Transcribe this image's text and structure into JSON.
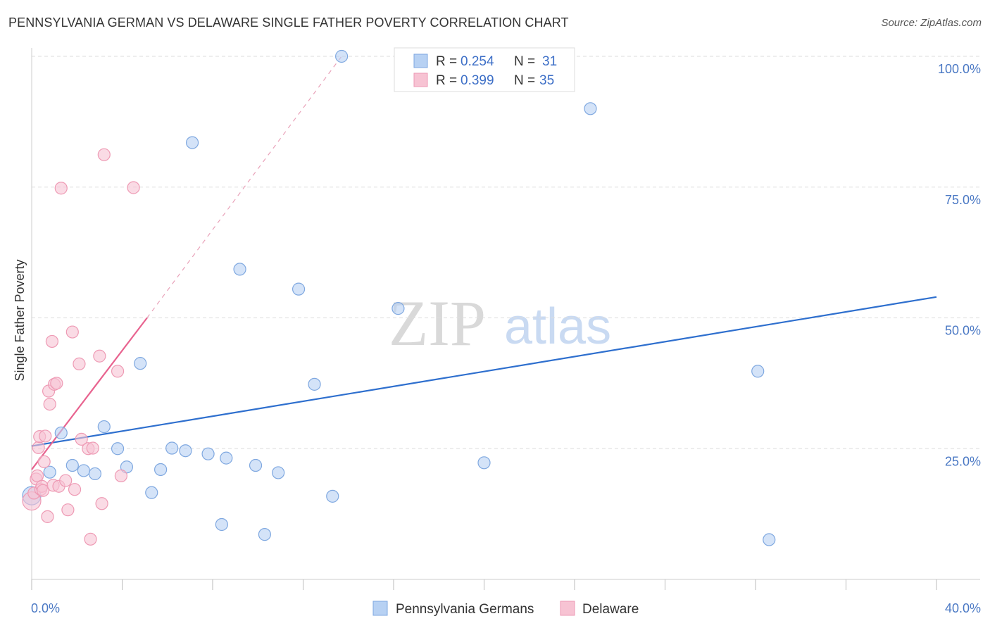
{
  "header": {
    "title": "PENNSYLVANIA GERMAN VS DELAWARE SINGLE FATHER POVERTY CORRELATION CHART",
    "source": "Source: ZipAtlas.com"
  },
  "watermark": {
    "zip": "ZIP",
    "atlas": "atlas"
  },
  "colors": {
    "blue_fill": "#b7d1f3",
    "blue_stroke": "#7fa8e0",
    "blue_line": "#2e6fce",
    "pink_fill": "#f7c3d3",
    "pink_stroke": "#ee9ab4",
    "pink_line": "#e8638f",
    "axis_text": "#4a78c4",
    "grid": "#dddddd"
  },
  "chart_data": {
    "type": "scatter",
    "title": "PENNSYLVANIA GERMAN VS DELAWARE SINGLE FATHER POVERTY CORRELATION CHART",
    "xlabel": "",
    "ylabel": "Single Father Poverty",
    "xlim": [
      0,
      40
    ],
    "ylim": [
      0,
      105
    ],
    "x_tick_labels": [
      "0.0%",
      "40.0%"
    ],
    "y_ticks": [
      25,
      50,
      75,
      100
    ],
    "y_tick_labels": [
      "25.0%",
      "50.0%",
      "75.0%",
      "100.0%"
    ],
    "legend": {
      "entries": [
        {
          "r_label": "R = ",
          "r_value": "0.254",
          "n_label": "N = ",
          "n_value": "31"
        },
        {
          "r_label": "R = ",
          "r_value": "0.399",
          "n_label": "N = ",
          "n_value": "35"
        }
      ]
    },
    "series": [
      {
        "name": "Pennsylvania Germans",
        "color": "#b7d1f3",
        "r": 0.254,
        "n": 31,
        "trend": {
          "x": [
            0,
            40
          ],
          "y": [
            25.5,
            54.0
          ],
          "style": "solid"
        },
        "points": [
          {
            "x": 0.0,
            "y": 16.0
          },
          {
            "x": 0.8,
            "y": 20.5
          },
          {
            "x": 1.3,
            "y": 28.0
          },
          {
            "x": 1.8,
            "y": 21.8
          },
          {
            "x": 2.3,
            "y": 20.8
          },
          {
            "x": 2.8,
            "y": 20.2
          },
          {
            "x": 3.2,
            "y": 29.2
          },
          {
            "x": 3.8,
            "y": 25.0
          },
          {
            "x": 4.2,
            "y": 21.5
          },
          {
            "x": 4.8,
            "y": 41.3
          },
          {
            "x": 5.3,
            "y": 16.6
          },
          {
            "x": 5.7,
            "y": 21.0
          },
          {
            "x": 6.2,
            "y": 25.1
          },
          {
            "x": 6.8,
            "y": 24.6
          },
          {
            "x": 7.8,
            "y": 24.0
          },
          {
            "x": 7.1,
            "y": 83.5
          },
          {
            "x": 8.4,
            "y": 10.5
          },
          {
            "x": 8.6,
            "y": 23.2
          },
          {
            "x": 9.2,
            "y": 59.3
          },
          {
            "x": 9.9,
            "y": 21.8
          },
          {
            "x": 10.3,
            "y": 8.6
          },
          {
            "x": 10.9,
            "y": 20.4
          },
          {
            "x": 11.8,
            "y": 55.5
          },
          {
            "x": 12.5,
            "y": 37.3
          },
          {
            "x": 13.3,
            "y": 15.9
          },
          {
            "x": 13.7,
            "y": 100.0
          },
          {
            "x": 16.2,
            "y": 51.8
          },
          {
            "x": 20.0,
            "y": 22.3
          },
          {
            "x": 24.7,
            "y": 90.0
          },
          {
            "x": 32.1,
            "y": 39.8
          },
          {
            "x": 32.6,
            "y": 7.6
          }
        ]
      },
      {
        "name": "Delaware",
        "color": "#f7c3d3",
        "r": 0.399,
        "n": 35,
        "trend": {
          "x": [
            0,
            5.1
          ],
          "y": [
            21.0,
            50.0
          ],
          "style": "solid",
          "extension": {
            "x": [
              5.1,
              13.7
            ],
            "y": [
              50.0,
              100.0
            ],
            "style": "dashed"
          }
        },
        "points": [
          {
            "x": 0.0,
            "y": 15.0
          },
          {
            "x": 0.1,
            "y": 16.5
          },
          {
            "x": 0.2,
            "y": 19.2
          },
          {
            "x": 0.25,
            "y": 19.8
          },
          {
            "x": 0.3,
            "y": 25.2
          },
          {
            "x": 0.35,
            "y": 27.3
          },
          {
            "x": 0.4,
            "y": 17.2
          },
          {
            "x": 0.45,
            "y": 17.8
          },
          {
            "x": 0.5,
            "y": 17.0
          },
          {
            "x": 0.55,
            "y": 22.5
          },
          {
            "x": 0.6,
            "y": 27.4
          },
          {
            "x": 0.7,
            "y": 12.0
          },
          {
            "x": 0.75,
            "y": 36.0
          },
          {
            "x": 0.8,
            "y": 33.5
          },
          {
            "x": 0.9,
            "y": 45.5
          },
          {
            "x": 0.95,
            "y": 18.0
          },
          {
            "x": 1.0,
            "y": 37.3
          },
          {
            "x": 1.1,
            "y": 37.5
          },
          {
            "x": 1.3,
            "y": 74.8
          },
          {
            "x": 1.2,
            "y": 17.8
          },
          {
            "x": 1.5,
            "y": 18.9
          },
          {
            "x": 1.6,
            "y": 13.3
          },
          {
            "x": 1.8,
            "y": 47.3
          },
          {
            "x": 1.9,
            "y": 17.2
          },
          {
            "x": 2.1,
            "y": 41.2
          },
          {
            "x": 2.2,
            "y": 26.8
          },
          {
            "x": 2.5,
            "y": 25.0
          },
          {
            "x": 2.7,
            "y": 25.1
          },
          {
            "x": 2.6,
            "y": 7.7
          },
          {
            "x": 3.0,
            "y": 42.7
          },
          {
            "x": 3.1,
            "y": 14.5
          },
          {
            "x": 3.2,
            "y": 81.2
          },
          {
            "x": 3.8,
            "y": 39.8
          },
          {
            "x": 3.95,
            "y": 19.8
          },
          {
            "x": 4.5,
            "y": 74.9
          }
        ]
      }
    ]
  },
  "bottom_legend": [
    "Pennsylvania Germans",
    "Delaware"
  ]
}
